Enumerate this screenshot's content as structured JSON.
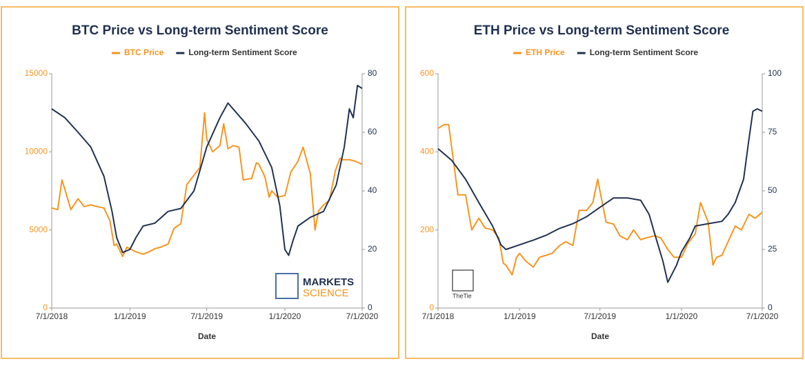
{
  "chart_data": [
    {
      "type": "line",
      "title": "BTC Price vs Long-term Sentiment Score",
      "xlabel": "Date",
      "xlim": [
        "2018-07-01",
        "2020-07-01"
      ],
      "xticks": [
        {
          "value": "2018-07-01",
          "label": "7/1/2018"
        },
        {
          "value": "2019-01-01",
          "label": "1/1/2019"
        },
        {
          "value": "2019-07-01",
          "label": "7/1/2019"
        },
        {
          "value": "2020-01-01",
          "label": "1/1/2020"
        },
        {
          "value": "2020-07-01",
          "label": "7/1/2020"
        }
      ],
      "ylim": [
        0,
        15000
      ],
      "yticks": [
        0,
        5000,
        10000,
        15000
      ],
      "y2lim": [
        0,
        80
      ],
      "y2ticks": [
        0,
        20,
        40,
        60,
        80
      ],
      "watermark": [
        "MARKETS",
        "SCIENCE"
      ],
      "series": [
        {
          "name": "BTC Price",
          "color": "#f7941d",
          "axis": "y",
          "x": [
            "2018-07-01",
            "2018-07-15",
            "2018-07-25",
            "2018-08-01",
            "2018-08-15",
            "2018-09-01",
            "2018-09-15",
            "2018-10-01",
            "2018-10-15",
            "2018-11-01",
            "2018-11-15",
            "2018-11-25",
            "2018-12-01",
            "2018-12-15",
            "2018-12-25",
            "2019-01-01",
            "2019-01-15",
            "2019-02-01",
            "2019-02-15",
            "2019-03-01",
            "2019-03-15",
            "2019-04-01",
            "2019-04-15",
            "2019-05-01",
            "2019-05-15",
            "2019-06-01",
            "2019-06-15",
            "2019-06-26",
            "2019-07-01",
            "2019-07-15",
            "2019-08-01",
            "2019-08-10",
            "2019-08-20",
            "2019-09-01",
            "2019-09-15",
            "2019-09-25",
            "2019-10-15",
            "2019-10-26",
            "2019-11-01",
            "2019-11-15",
            "2019-11-25",
            "2019-12-01",
            "2019-12-15",
            "2020-01-01",
            "2020-01-15",
            "2020-02-01",
            "2020-02-13",
            "2020-03-01",
            "2020-03-12",
            "2020-03-20",
            "2020-04-01",
            "2020-04-15",
            "2020-04-29",
            "2020-05-10",
            "2020-05-15",
            "2020-06-01",
            "2020-06-15",
            "2020-07-01"
          ],
          "values": [
            6400,
            6300,
            8200,
            7600,
            6300,
            7000,
            6500,
            6600,
            6500,
            6400,
            5600,
            4000,
            4100,
            3300,
            3900,
            3800,
            3600,
            3450,
            3600,
            3800,
            3900,
            4100,
            5100,
            5400,
            7900,
            8500,
            9000,
            12500,
            10800,
            10000,
            10400,
            11800,
            10200,
            10400,
            10300,
            8200,
            8300,
            9300,
            9200,
            8400,
            7100,
            7500,
            7100,
            7200,
            8700,
            9400,
            10300,
            8600,
            5000,
            6200,
            6600,
            6900,
            8800,
            9600,
            9500,
            9500,
            9400,
            9200
          ]
        },
        {
          "name": "Long-term Sentiment Score",
          "color": "#1f3050",
          "axis": "y2",
          "x": [
            "2018-07-01",
            "2018-08-01",
            "2018-09-01",
            "2018-10-01",
            "2018-11-01",
            "2018-11-20",
            "2018-12-01",
            "2018-12-15",
            "2019-01-01",
            "2019-01-15",
            "2019-02-01",
            "2019-03-01",
            "2019-04-01",
            "2019-05-01",
            "2019-06-01",
            "2019-07-01",
            "2019-08-01",
            "2019-08-20",
            "2019-09-01",
            "2019-10-01",
            "2019-11-01",
            "2019-12-01",
            "2019-12-20",
            "2020-01-01",
            "2020-01-10",
            "2020-01-20",
            "2020-02-01",
            "2020-03-01",
            "2020-04-01",
            "2020-05-01",
            "2020-05-20",
            "2020-06-01",
            "2020-06-10",
            "2020-06-20",
            "2020-07-01"
          ],
          "values": [
            68,
            65,
            60,
            55,
            45,
            33,
            24,
            19,
            20,
            24,
            28,
            29,
            33,
            34,
            40,
            55,
            65,
            70,
            68,
            63,
            57,
            48,
            35,
            20,
            18,
            23,
            28,
            31,
            33,
            42,
            55,
            68,
            65,
            76,
            75
          ]
        }
      ]
    },
    {
      "type": "line",
      "title": "ETH Price vs Long-term Sentiment Score",
      "xlabel": "Date",
      "xlim": [
        "2018-07-01",
        "2020-07-01"
      ],
      "xticks": [
        {
          "value": "2018-07-01",
          "label": "7/1/2018"
        },
        {
          "value": "2019-01-01",
          "label": "1/1/2019"
        },
        {
          "value": "2019-07-01",
          "label": "7/1/2019"
        },
        {
          "value": "2020-01-01",
          "label": "1/1/2020"
        },
        {
          "value": "2020-07-01",
          "label": "7/1/2020"
        }
      ],
      "ylim": [
        0,
        600
      ],
      "yticks": [
        0,
        200,
        400,
        600
      ],
      "y2lim": [
        0,
        100
      ],
      "y2ticks": [
        0,
        25,
        50,
        75,
        100
      ],
      "watermark": [
        "TheTie"
      ],
      "series": [
        {
          "name": "ETH Price",
          "color": "#f7941d",
          "axis": "y",
          "x": [
            "2018-07-01",
            "2018-07-15",
            "2018-07-25",
            "2018-08-01",
            "2018-08-15",
            "2018-09-01",
            "2018-09-15",
            "2018-10-01",
            "2018-10-15",
            "2018-11-01",
            "2018-11-15",
            "2018-11-25",
            "2018-12-01",
            "2018-12-15",
            "2018-12-25",
            "2019-01-01",
            "2019-01-15",
            "2019-02-01",
            "2019-02-15",
            "2019-03-01",
            "2019-03-15",
            "2019-04-01",
            "2019-04-15",
            "2019-05-01",
            "2019-05-15",
            "2019-06-01",
            "2019-06-15",
            "2019-06-26",
            "2019-07-01",
            "2019-07-15",
            "2019-08-01",
            "2019-08-15",
            "2019-09-01",
            "2019-09-15",
            "2019-10-01",
            "2019-10-15",
            "2019-11-01",
            "2019-11-15",
            "2019-12-01",
            "2019-12-15",
            "2020-01-01",
            "2020-01-15",
            "2020-02-01",
            "2020-02-13",
            "2020-03-01",
            "2020-03-12",
            "2020-03-20",
            "2020-04-01",
            "2020-04-15",
            "2020-05-01",
            "2020-05-15",
            "2020-06-01",
            "2020-06-15",
            "2020-07-01"
          ],
          "values": [
            460,
            470,
            470,
            410,
            290,
            290,
            200,
            230,
            205,
            200,
            180,
            115,
            110,
            85,
            130,
            140,
            120,
            105,
            130,
            135,
            140,
            160,
            170,
            160,
            250,
            250,
            270,
            330,
            300,
            220,
            215,
            185,
            175,
            200,
            175,
            180,
            185,
            180,
            150,
            130,
            130,
            165,
            190,
            270,
            220,
            110,
            130,
            135,
            170,
            210,
            200,
            240,
            230,
            245
          ]
        },
        {
          "name": "Long-term Sentiment Score",
          "color": "#1f3050",
          "axis": "y2",
          "x": [
            "2018-07-01",
            "2018-08-01",
            "2018-09-01",
            "2018-10-01",
            "2018-11-01",
            "2018-11-20",
            "2018-12-01",
            "2019-01-01",
            "2019-02-01",
            "2019-03-01",
            "2019-04-01",
            "2019-05-01",
            "2019-06-01",
            "2019-07-01",
            "2019-08-01",
            "2019-09-01",
            "2019-10-01",
            "2019-10-20",
            "2019-11-01",
            "2019-11-20",
            "2019-12-01",
            "2019-12-20",
            "2020-01-01",
            "2020-01-20",
            "2020-02-01",
            "2020-03-01",
            "2020-04-01",
            "2020-04-15",
            "2020-05-01",
            "2020-05-20",
            "2020-06-01",
            "2020-06-10",
            "2020-06-20",
            "2020-07-01"
          ],
          "values": [
            68,
            63,
            55,
            45,
            35,
            27,
            25,
            27,
            29,
            31,
            34,
            36,
            39,
            43,
            47,
            47,
            46,
            40,
            32,
            20,
            11,
            18,
            24,
            30,
            35,
            36,
            37,
            40,
            45,
            55,
            72,
            84,
            85,
            84
          ]
        }
      ]
    }
  ]
}
